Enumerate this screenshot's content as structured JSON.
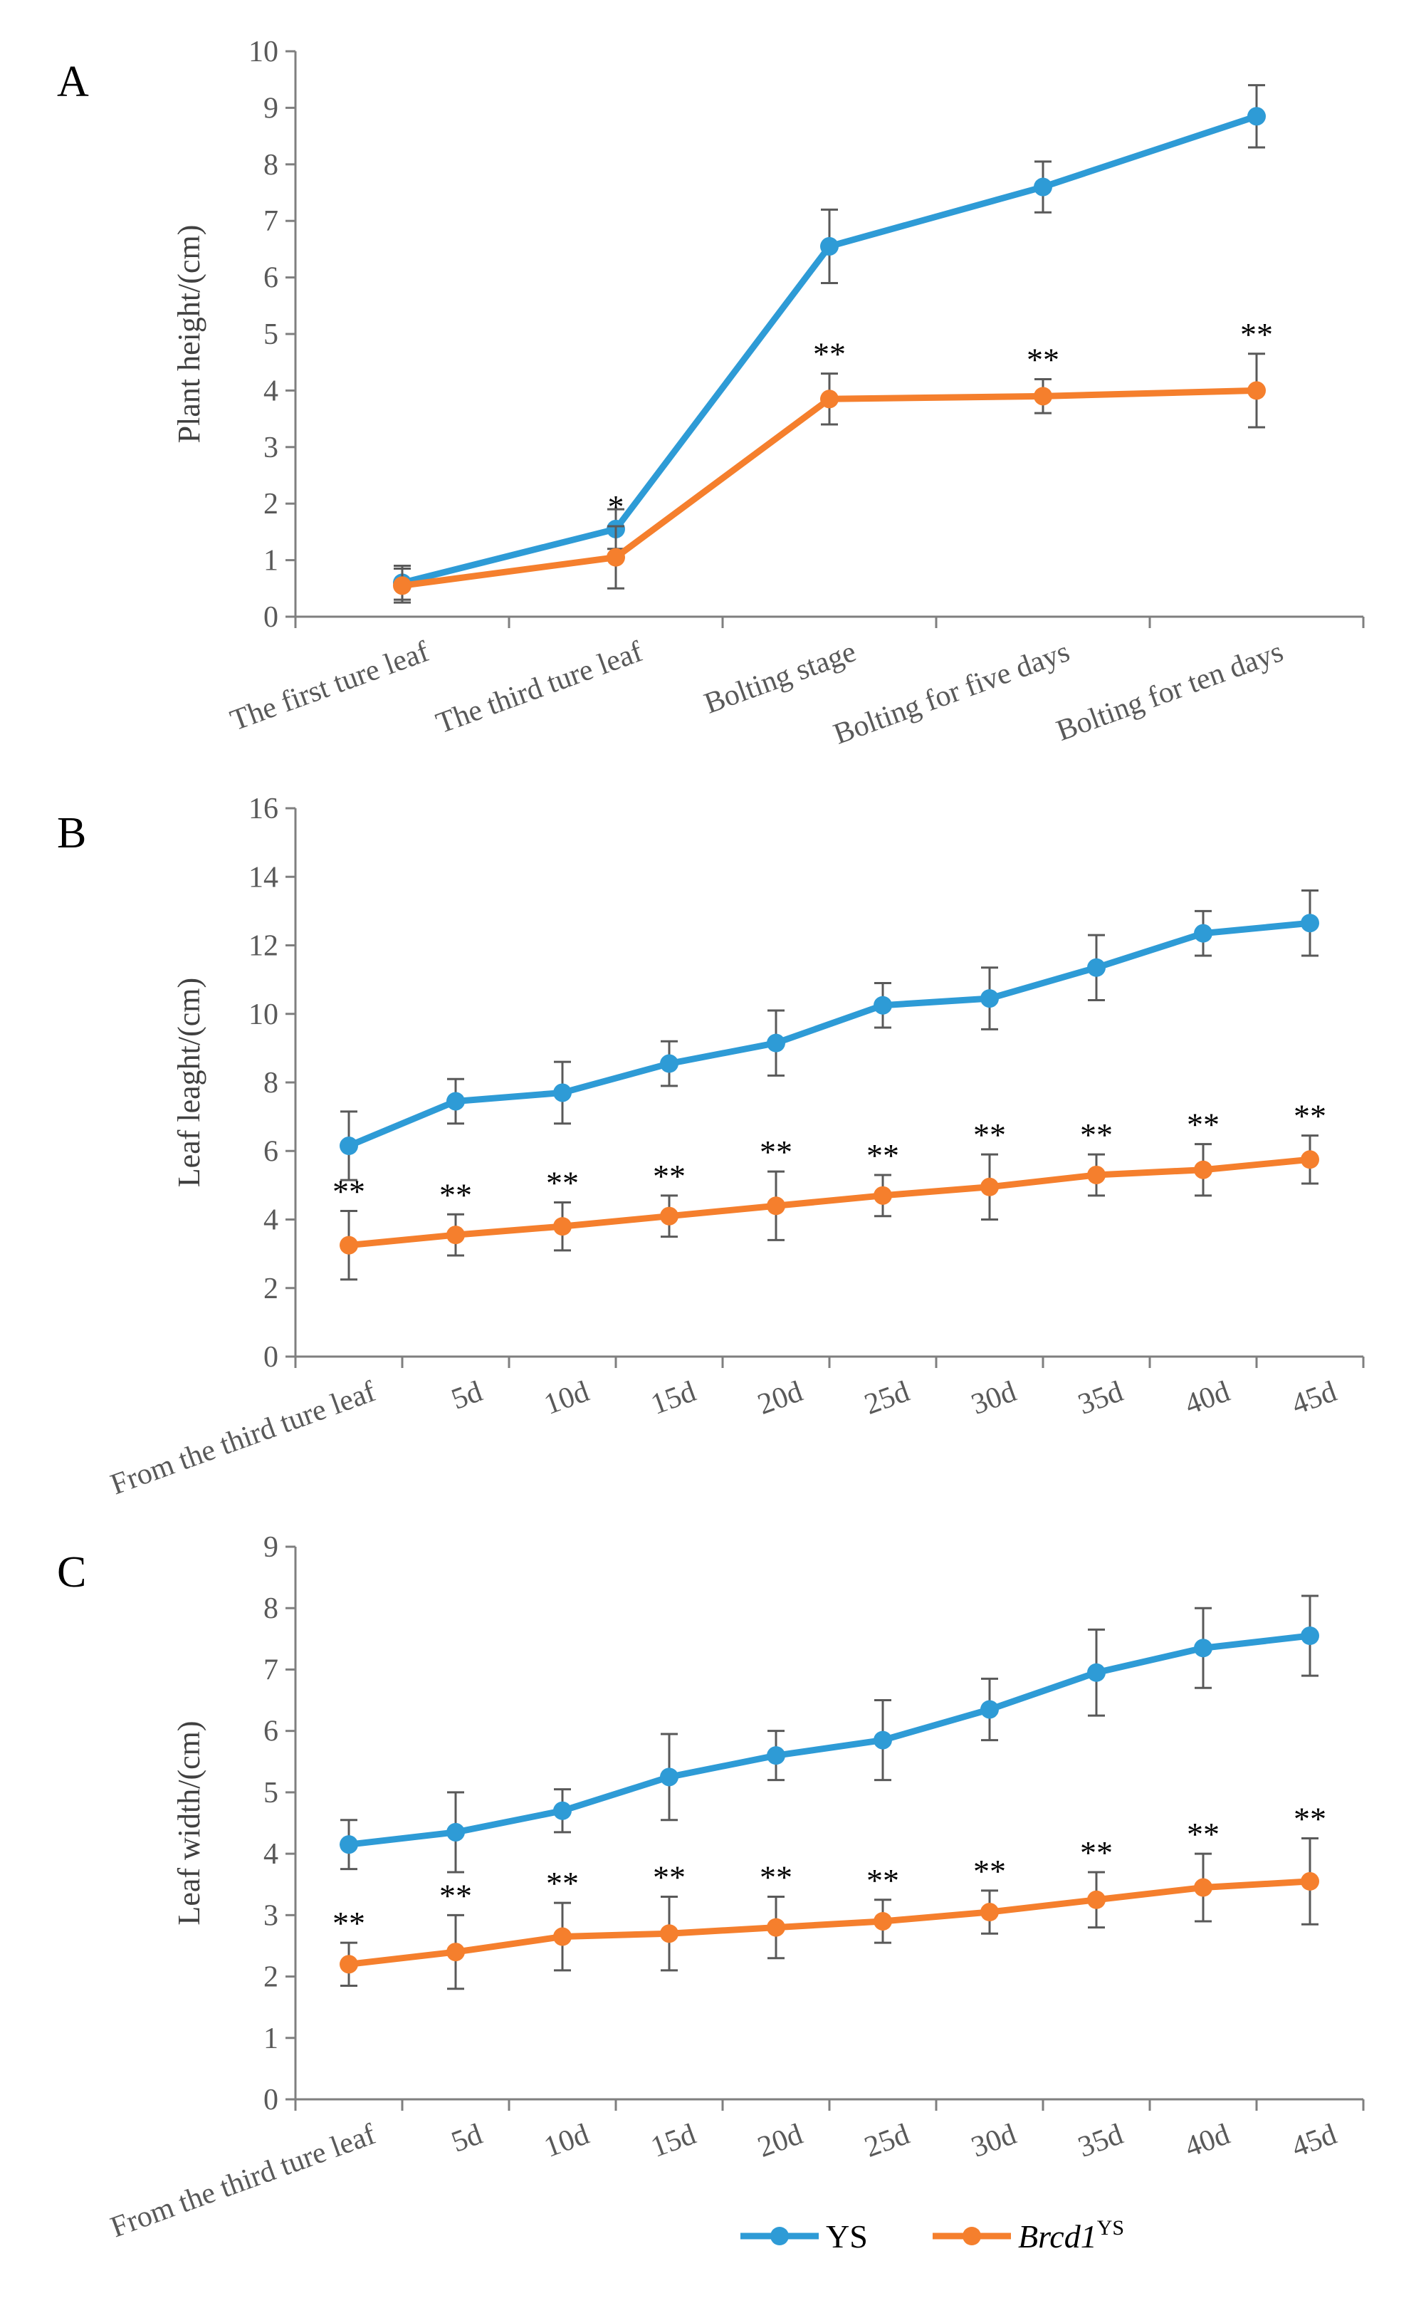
{
  "colors": {
    "ys": "#2E9BD6",
    "mutant": "#F57F2D",
    "axis": "#7F7F7F",
    "errorbar": "#595959"
  },
  "legend": {
    "ys": "YS",
    "mutant_main": "Brcd1",
    "mutant_sup": "YS"
  },
  "chart_data": [
    {
      "panel": "A",
      "type": "line",
      "ylabel": "Plant height/(cm)",
      "ylim": [
        0,
        10
      ],
      "yticks": [
        0,
        1,
        2,
        3,
        4,
        5,
        6,
        7,
        8,
        9,
        10
      ],
      "categories": [
        "The first ture leaf",
        "The third ture leaf",
        "Bolting stage",
        "Bolting for five days",
        "Bolting for ten days"
      ],
      "series": [
        {
          "name": "YS",
          "values": [
            0.6,
            1.55,
            6.55,
            7.6,
            8.85
          ],
          "errors": [
            0.3,
            0.35,
            0.65,
            0.45,
            0.55
          ],
          "sig": [
            "",
            "",
            "",
            "",
            ""
          ]
        },
        {
          "name": "Brcd1YS",
          "values": [
            0.55,
            1.05,
            3.85,
            3.9,
            4.0
          ],
          "errors": [
            0.3,
            0.55,
            0.45,
            0.3,
            0.65
          ],
          "sig": [
            "",
            "*",
            "**",
            "**",
            "**"
          ]
        }
      ]
    },
    {
      "panel": "B",
      "type": "line",
      "ylabel": "Leaf leaght/(cm)",
      "ylim": [
        0,
        16
      ],
      "yticks": [
        0,
        2,
        4,
        6,
        8,
        10,
        12,
        14,
        16
      ],
      "categories": [
        "From the third ture leaf",
        "5d",
        "10d",
        "15d",
        "20d",
        "25d",
        "30d",
        "35d",
        "40d",
        "45d"
      ],
      "series": [
        {
          "name": "YS",
          "values": [
            6.15,
            7.45,
            7.7,
            8.55,
            9.15,
            10.25,
            10.45,
            11.35,
            12.35,
            12.65
          ],
          "errors": [
            1.0,
            0.65,
            0.9,
            0.65,
            0.95,
            0.65,
            0.9,
            0.95,
            0.65,
            0.95
          ],
          "sig": [
            "",
            "",
            "",
            "",
            "",
            "",
            "",
            "",
            "",
            ""
          ]
        },
        {
          "name": "Brcd1YS",
          "values": [
            3.25,
            3.55,
            3.8,
            4.1,
            4.4,
            4.7,
            4.95,
            5.3,
            5.45,
            5.75
          ],
          "errors": [
            1.0,
            0.6,
            0.7,
            0.6,
            1.0,
            0.6,
            0.95,
            0.6,
            0.75,
            0.7
          ],
          "sig": [
            "**",
            "**",
            "**",
            "**",
            "**",
            "**",
            "**",
            "**",
            "**",
            "**"
          ]
        }
      ]
    },
    {
      "panel": "C",
      "type": "line",
      "ylabel": "Leaf  width/(cm)",
      "ylim": [
        0,
        9
      ],
      "yticks": [
        0,
        1,
        2,
        3,
        4,
        5,
        6,
        7,
        8,
        9
      ],
      "categories": [
        "From the third ture leaf",
        "5d",
        "10d",
        "15d",
        "20d",
        "25d",
        "30d",
        "35d",
        "40d",
        "45d"
      ],
      "series": [
        {
          "name": "YS",
          "values": [
            4.15,
            4.35,
            4.7,
            5.25,
            5.6,
            5.85,
            6.35,
            6.95,
            7.35,
            7.55
          ],
          "errors": [
            0.4,
            0.65,
            0.35,
            0.7,
            0.4,
            0.65,
            0.5,
            0.7,
            0.65,
            0.65
          ],
          "sig": [
            "",
            "",
            "",
            "",
            "",
            "",
            "",
            "",
            "",
            ""
          ]
        },
        {
          "name": "Brcd1YS",
          "values": [
            2.2,
            2.4,
            2.65,
            2.7,
            2.8,
            2.9,
            3.05,
            3.25,
            3.45,
            3.55
          ],
          "errors": [
            0.35,
            0.6,
            0.55,
            0.6,
            0.5,
            0.35,
            0.35,
            0.45,
            0.55,
            0.7
          ],
          "sig": [
            "**",
            "**",
            "**",
            "**",
            "**",
            "**",
            "**",
            "**",
            "**",
            "**"
          ]
        }
      ]
    }
  ]
}
